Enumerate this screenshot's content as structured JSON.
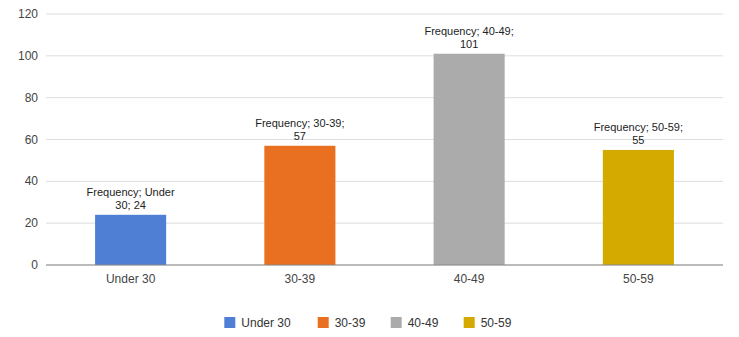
{
  "chart_data": {
    "type": "bar",
    "categories": [
      "Under 30",
      "30-39",
      "40-49",
      "50-59"
    ],
    "values": [
      24,
      57,
      101,
      55
    ],
    "colors": [
      "#4F7FD4",
      "#E87020",
      "#ABABAB",
      "#D4AA00"
    ],
    "data_labels": true,
    "value_labels": [
      "Frequency; Under\n30; 24",
      "Frequency; 30-39;\n57",
      "Frequency; 40-49;\n101",
      "Frequency; 50-59;\n55"
    ],
    "ylim": [
      0,
      120
    ],
    "yticks": [
      0,
      20,
      40,
      60,
      80,
      100,
      120
    ],
    "grid": true,
    "legend": "bottom"
  }
}
